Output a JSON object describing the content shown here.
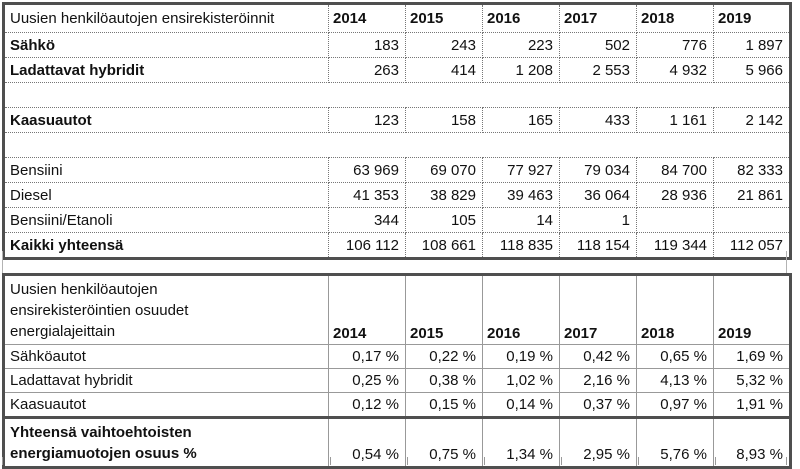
{
  "table1": {
    "header": {
      "label": "Uusien henkilöautojen ensirekisteröinnit",
      "years": [
        "2014",
        "2015",
        "2016",
        "2017",
        "2018",
        "2019"
      ]
    },
    "rows": [
      {
        "label": "Sähkö",
        "bold": true,
        "empty": false,
        "values": [
          "183",
          "243",
          "223",
          "502",
          "776",
          "1 897"
        ]
      },
      {
        "label": "Ladattavat hybridit",
        "bold": true,
        "empty": false,
        "values": [
          "263",
          "414",
          "1 208",
          "2 553",
          "4 932",
          "5 966"
        ]
      },
      {
        "label": "",
        "bold": false,
        "empty": true,
        "values": [
          "",
          "",
          "",
          "",
          "",
          ""
        ]
      },
      {
        "label": "Kaasuautot",
        "bold": true,
        "empty": false,
        "values": [
          "123",
          "158",
          "165",
          "433",
          "1 161",
          "2 142"
        ]
      },
      {
        "label": "",
        "bold": false,
        "empty": true,
        "values": [
          "",
          "",
          "",
          "",
          "",
          ""
        ]
      },
      {
        "label": "Bensiini",
        "bold": false,
        "empty": false,
        "values": [
          "63 969",
          "69 070",
          "77 927",
          "79 034",
          "84 700",
          "82 333"
        ]
      },
      {
        "label": "Diesel",
        "bold": false,
        "empty": false,
        "values": [
          "41 353",
          "38 829",
          "39 463",
          "36 064",
          "28 936",
          "21 861"
        ]
      },
      {
        "label": "Bensiini/Etanoli",
        "bold": false,
        "empty": false,
        "values": [
          "344",
          "105",
          "14",
          "1",
          "",
          ""
        ]
      },
      {
        "label": "Kaikki yhteensä",
        "bold": true,
        "empty": false,
        "values": [
          "106 112",
          "108 661",
          "118 835",
          "118 154",
          "119 344",
          "112 057"
        ]
      }
    ]
  },
  "table2": {
    "header": {
      "label": "Uusien henkilöautojen\nensirekisteröintien osuudet\nenergialajeittain",
      "years": [
        "2014",
        "2015",
        "2016",
        "2017",
        "2018",
        "2019"
      ]
    },
    "rows": [
      {
        "label": "Sähköautot",
        "values": [
          "0,17 %",
          "0,22 %",
          "0,19 %",
          "0,42 %",
          "0,65 %",
          "1,69 %"
        ]
      },
      {
        "label": "Ladattavat hybridit",
        "values": [
          "0,25 %",
          "0,38 %",
          "1,02 %",
          "2,16 %",
          "4,13 %",
          "5,32 %"
        ]
      },
      {
        "label": "Kaasuautot",
        "values": [
          "0,12 %",
          "0,15 %",
          "0,14 %",
          "0,37 %",
          "0,97 %",
          "1,91 %"
        ]
      }
    ],
    "total_row": {
      "label": "Yhteensä vaihtoehtoisten\nenergiamuotojen osuus %",
      "values": [
        "0,54 %",
        "0,75 %",
        "1,34 %",
        "2,95 %",
        "5,76 %",
        "8,93 %"
      ]
    }
  }
}
